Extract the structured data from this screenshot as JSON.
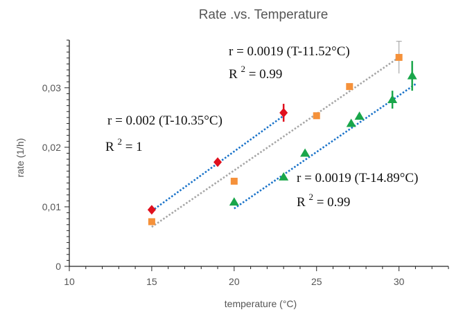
{
  "chart_data": {
    "type": "scatter",
    "title": "Rate .vs. Temperature",
    "xlabel": "temperature (°C)",
    "ylabel": "rate (1/h)",
    "xlim": [
      10,
      33
    ],
    "ylim": [
      0,
      0.038
    ],
    "xticks": [
      10,
      15,
      20,
      25,
      30
    ],
    "xtick_labels": [
      "10",
      "15",
      "20",
      "25",
      "30"
    ],
    "yticks": [
      0,
      0.01,
      0.02,
      0.03
    ],
    "ytick_labels": [
      "0",
      "0,01",
      "0,02",
      "0,03"
    ],
    "grid": false,
    "series": [
      {
        "marker": "diamond",
        "color": "#e0101e",
        "trend_color": "#1a73c9",
        "x": [
          15,
          19,
          23
        ],
        "y": [
          0.0095,
          0.0175,
          0.0258
        ],
        "err": [
          0,
          0,
          0.0015
        ],
        "trend": {
          "slope": 0.002,
          "t0": 10.35,
          "x_range": [
            15,
            23
          ]
        },
        "equation": "r = 0.002 (T-10.35°C)",
        "r2_prefix": "R",
        "r2_sup": "2",
        "r2_value": "= 1"
      },
      {
        "marker": "square",
        "color": "#f5913a",
        "trend_color": "#a6a6a6",
        "x": [
          15,
          20,
          25,
          27,
          30
        ],
        "y": [
          0.0075,
          0.0143,
          0.0253,
          0.0302,
          0.0351
        ],
        "err": [
          0,
          0,
          0,
          0,
          0.0027
        ],
        "trend": {
          "slope": 0.0019,
          "t0": 11.52,
          "x_range": [
            15,
            30
          ]
        },
        "equation": "r = 0.0019 (T-11.52°C)",
        "r2_prefix": "R",
        "r2_sup": "2",
        "r2_value": "= 0.99"
      },
      {
        "marker": "triangle",
        "color": "#19a64a",
        "trend_color": "#1a73c9",
        "x": [
          20,
          23,
          24.3,
          27.1,
          27.6,
          29.6,
          30.8
        ],
        "y": [
          0.0108,
          0.015,
          0.019,
          0.024,
          0.0252,
          0.028,
          0.032
        ],
        "err": [
          0,
          0,
          0,
          0,
          0,
          0.0015,
          0.0025
        ],
        "trend": {
          "slope": 0.0019,
          "t0": 14.89,
          "x_range": [
            20,
            31
          ]
        },
        "equation": "r = 0.0019 (T-14.89°C)",
        "r2_prefix": "R",
        "r2_sup": "2",
        "r2_value": "= 0.99"
      }
    ]
  }
}
